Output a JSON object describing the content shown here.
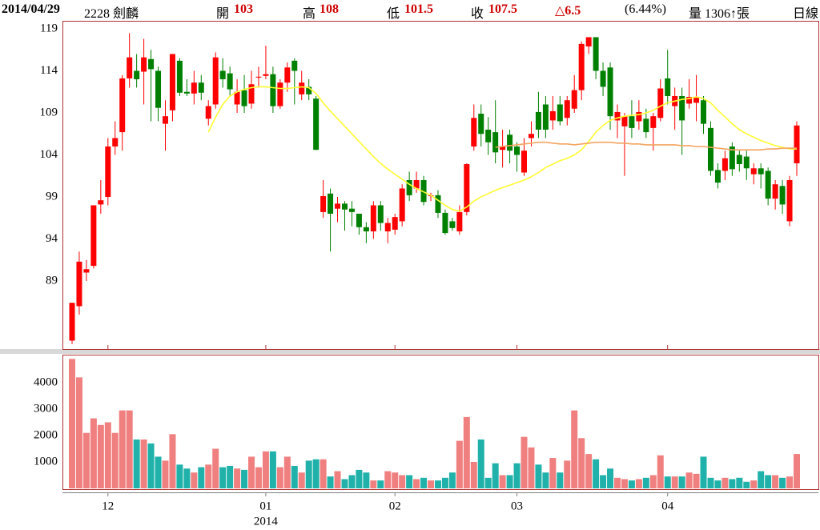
{
  "header": {
    "date": "2014/04/29",
    "stock": "2228 劍麟",
    "open_label": "開",
    "open": "103",
    "high_label": "高",
    "high": "108",
    "low_label": "低",
    "low": "101.5",
    "close_label": "收",
    "close": "107.5",
    "change": "△6.5",
    "change_pct": "(6.44%)",
    "volume": "量 1306↑張",
    "period": "日線"
  },
  "chart_data": [
    {
      "type": "candlestick",
      "up_color": "#ff0000",
      "down_color": "#008000",
      "open": [
        81.9,
        86,
        90,
        90.8,
        98.1,
        99,
        105,
        106.7,
        113.1,
        114,
        113.9,
        115.4,
        114,
        107.7,
        109.3,
        115.2,
        111.5,
        111.3,
        112.6,
        108.3,
        110,
        114,
        113.7,
        110,
        111.7,
        110.1,
        113.2,
        113.4,
        113.6,
        109.8,
        112.6,
        115.2,
        111.2,
        112.1,
        110.7,
        97.2,
        99.4,
        97.6,
        98.2,
        97.6,
        97,
        95.4,
        94.9,
        98,
        94.9,
        95.1,
        96.1,
        101,
        100,
        101,
        99.1,
        99.2,
        97.1,
        96.1,
        94.9,
        97.2,
        105,
        108.9,
        107,
        106.7,
        104.6,
        106.4,
        105,
        101.9,
        106,
        109.1,
        110,
        108.1,
        110,
        108.4,
        109.5,
        111.7,
        116.9,
        118,
        114,
        114.4,
        108.1,
        107.4,
        108.6,
        108,
        108.3,
        107.2,
        108.4,
        113.1,
        109.8,
        111,
        110.1,
        110.2,
        110.5,
        107.2,
        102.2,
        102.1,
        105,
        104,
        103.8,
        101.7,
        102.4,
        102.1,
        98.8,
        100.3,
        96.1,
        103
      ],
      "high": [
        86.4,
        92.5,
        91.5,
        98,
        101,
        106,
        108,
        113.5,
        118.5,
        116,
        117.8,
        116.5,
        114.5,
        110.5,
        116,
        115.5,
        113,
        114,
        113.5,
        110.5,
        116.2,
        115.5,
        114.5,
        113,
        113.5,
        114,
        114.5,
        117,
        114.5,
        113,
        115,
        115.5,
        114,
        113,
        111,
        101,
        100,
        99,
        98.5,
        98.5,
        97,
        96,
        98.5,
        98.5,
        96.5,
        97,
        100.5,
        102,
        102,
        101.5,
        99.5,
        99.8,
        97.5,
        96.5,
        98,
        103,
        110,
        110,
        108.5,
        110.5,
        107,
        107,
        105.5,
        106,
        108,
        111.5,
        111,
        111,
        111,
        111,
        113.5,
        117.5,
        118,
        118,
        115,
        115,
        110,
        109,
        110.5,
        110.5,
        109.5,
        109,
        113,
        116.5,
        112,
        112,
        113,
        113.5,
        111,
        108,
        103,
        104.5,
        105.5,
        104.5,
        104.5,
        103,
        103,
        102.5,
        101,
        101,
        101.5,
        108
      ],
      "low": [
        81.5,
        85,
        89,
        90.5,
        97,
        98,
        104,
        104.5,
        112,
        112,
        110,
        108,
        108,
        104.5,
        108,
        111,
        111,
        110,
        110.5,
        107.5,
        109.5,
        112,
        111,
        109,
        109,
        109.5,
        112,
        113,
        109,
        109.5,
        111.5,
        110,
        110.5,
        110.5,
        104.6,
        96.5,
        92.5,
        96,
        95,
        95.5,
        94.5,
        93.5,
        94,
        95,
        93.5,
        94.5,
        95.5,
        98.5,
        99.5,
        98,
        98.5,
        96.5,
        94.5,
        95,
        94.5,
        96.8,
        104.5,
        105,
        104,
        103,
        102.5,
        103,
        102,
        101.5,
        105,
        106,
        106,
        107,
        107.5,
        107.5,
        109,
        110.5,
        116,
        113,
        111,
        107,
        106,
        101.5,
        106,
        107,
        106,
        104.5,
        108,
        110,
        107,
        104,
        109.5,
        108,
        106.5,
        101.5,
        100,
        101,
        101.5,
        102,
        101,
        100.5,
        100,
        98,
        97.5,
        97,
        95.5,
        101.5
      ],
      "close": [
        86.4,
        91.3,
        90.4,
        98,
        98.6,
        105,
        106,
        113.1,
        115.6,
        113,
        115.6,
        114.2,
        109.6,
        108.6,
        116,
        111.4,
        111.3,
        112.6,
        111.4,
        109.8,
        115.6,
        113,
        111.8,
        111.5,
        109.8,
        112.4,
        113.3,
        113.6,
        109.8,
        112.6,
        114.4,
        114,
        112.6,
        111.2,
        104.6,
        99.1,
        97,
        98.2,
        97.5,
        97.2,
        95.4,
        94.9,
        98,
        95.9,
        95.9,
        96.6,
        100,
        99.2,
        101,
        98.4,
        99.2,
        97.1,
        94.7,
        95.3,
        97.2,
        102.9,
        108.4,
        106.5,
        105.5,
        104.3,
        105,
        104.5,
        104,
        104.5,
        106.5,
        107,
        107,
        109.2,
        108,
        110.5,
        111.7,
        117.2,
        118,
        114,
        112.1,
        108.6,
        109.1,
        108.6,
        107.2,
        109.1,
        106.7,
        108.6,
        111.9,
        111,
        111,
        108.1,
        110.9,
        110.8,
        107.7,
        102.1,
        100.7,
        103.6,
        102.3,
        102.9,
        102.4,
        102.4,
        101.7,
        98.8,
        100.5,
        98.1,
        101,
        107.5
      ],
      "series": [
        {
          "color": "#ffff33",
          "values": [
            null,
            null,
            null,
            null,
            null,
            null,
            null,
            null,
            null,
            null,
            null,
            null,
            null,
            null,
            null,
            null,
            null,
            null,
            null,
            106.7,
            108.5,
            110,
            111,
            111.5,
            111.8,
            112,
            112.1,
            112.1,
            112,
            111.9,
            111.9,
            112,
            112.1,
            112,
            111.3,
            110.2,
            109.2,
            108.3,
            107.4,
            106.5,
            105.6,
            104.7,
            103.8,
            103,
            102.3,
            101.7,
            101.1,
            100.5,
            100,
            99.6,
            99.2,
            98.6,
            98,
            97.5,
            97.3,
            97.8,
            98.5,
            99,
            99.4,
            99.8,
            100.1,
            100.4,
            100.7,
            101,
            101.4,
            101.9,
            102.5,
            102.9,
            103.3,
            103.6,
            104,
            104.6,
            105.6,
            106.7,
            107.5,
            108.1,
            108.4,
            108.6,
            108.7,
            108.8,
            109,
            109.3,
            109.8,
            110.2,
            110.4,
            110.6,
            110.7,
            110.9,
            110.7,
            110.2,
            109.3,
            108.5,
            107.7,
            107,
            106.5,
            106.1,
            105.7,
            105.4,
            105.1,
            104.9,
            104.7,
            104.7
          ]
        },
        {
          "color": "#f4a460",
          "values": [
            null,
            null,
            null,
            null,
            null,
            null,
            null,
            null,
            null,
            null,
            null,
            null,
            null,
            null,
            null,
            null,
            null,
            null,
            null,
            null,
            null,
            null,
            null,
            null,
            null,
            null,
            null,
            null,
            null,
            null,
            null,
            null,
            null,
            null,
            null,
            null,
            null,
            null,
            null,
            null,
            null,
            null,
            null,
            null,
            null,
            null,
            null,
            null,
            null,
            null,
            null,
            null,
            null,
            null,
            null,
            null,
            null,
            null,
            null,
            104.9,
            105,
            105.1,
            105.2,
            105.3,
            105.4,
            105.5,
            105.5,
            105.4,
            105.3,
            105.3,
            105.2,
            105.3,
            105.4,
            105.5,
            105.5,
            105.5,
            105.4,
            105.4,
            105.3,
            105.3,
            105.2,
            105.2,
            105.2,
            105.2,
            105.2,
            105.1,
            105.1,
            105,
            105,
            104.9,
            104.8,
            104.7,
            104.6,
            104.6,
            104.6,
            104.6,
            104.6,
            104.7,
            104.7,
            104.8,
            104.8,
            104.8
          ]
        }
      ],
      "ylim": [
        80.9,
        119.95
      ],
      "yticks": [
        89,
        94,
        99,
        104,
        109,
        114,
        119
      ]
    },
    {
      "type": "bar",
      "up_color": "#f08080",
      "down_color": "#20b2aa",
      "categories": [
        null,
        null,
        null,
        null,
        null,
        "12",
        null,
        null,
        null,
        null,
        null,
        null,
        null,
        null,
        null,
        null,
        null,
        null,
        null,
        null,
        null,
        null,
        null,
        null,
        null,
        null,
        null,
        "01",
        null,
        null,
        null,
        null,
        null,
        null,
        null,
        null,
        null,
        null,
        null,
        null,
        null,
        null,
        null,
        null,
        null,
        "02",
        null,
        null,
        null,
        null,
        null,
        null,
        null,
        null,
        null,
        null,
        null,
        null,
        null,
        null,
        null,
        null,
        "03",
        null,
        null,
        null,
        null,
        null,
        null,
        null,
        null,
        null,
        null,
        null,
        null,
        null,
        null,
        null,
        null,
        null,
        null,
        null,
        null,
        "04",
        null,
        null,
        null,
        null,
        null,
        null,
        null,
        null,
        null,
        null,
        null,
        null,
        null,
        null,
        null,
        null,
        null,
        null
      ],
      "year_label": "2014",
      "values": [
        4900,
        4200,
        2100,
        2650,
        2400,
        2500,
        2100,
        2950,
        2950,
        1850,
        1850,
        1700,
        1200,
        1050,
        2050,
        900,
        750,
        600,
        800,
        900,
        1500,
        800,
        850,
        750,
        700,
        1200,
        800,
        1400,
        1400,
        800,
        1200,
        850,
        600,
        1050,
        1100,
        1100,
        450,
        650,
        350,
        500,
        700,
        600,
        300,
        300,
        650,
        600,
        500,
        500,
        350,
        400,
        300,
        300,
        400,
        600,
        1800,
        2700,
        1000,
        1850,
        400,
        950,
        500,
        500,
        950,
        1950,
        1550,
        900,
        600,
        1150,
        600,
        1050,
        2950,
        1900,
        1300,
        1100,
        500,
        750,
        400,
        350,
        300,
        350,
        400,
        500,
        1250,
        450,
        450,
        450,
        600,
        550,
        1200,
        400,
        300,
        400,
        350,
        400,
        250,
        300,
        650,
        500,
        500,
        400,
        450,
        1300
      ],
      "ylim": [
        0,
        5060
      ],
      "yticks": [
        1000,
        2000,
        3000,
        4000
      ]
    }
  ]
}
